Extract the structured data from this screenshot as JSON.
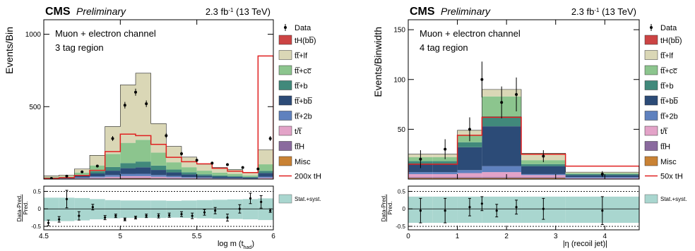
{
  "colors": {
    "tH": "#cc4444",
    "ttlf": "#dad7b6",
    "ttcc": "#8cc58e",
    "ttb": "#41897b",
    "ttbb": "#2c4b77",
    "tt2b": "#5f81be",
    "tt": "#e3a3c8",
    "ttH": "#8a6a9e",
    "Misc": "#c98234",
    "signal": "#e02020",
    "syst": "#a9d6cf"
  },
  "chart_data": [
    {
      "type": "bar",
      "stacked": true,
      "experiment": "CMS",
      "status": "Preliminary",
      "luminosity": "2.3 fb",
      "lumi_sup": "-1",
      "energy": " (13 TeV)",
      "annotation_1": "Muon + electron channel",
      "annotation_2": "3 tag region",
      "ylabel": "Events/Bin",
      "xlabel": "log m (t",
      "xlabel_sub": "had",
      "xlabel_end": ")",
      "xlim": [
        4.5,
        6.0
      ],
      "ylim": [
        0,
        1100
      ],
      "xticks": [
        "4.5",
        "5",
        "5.5",
        "6"
      ],
      "yticks": [
        "500",
        "1000"
      ],
      "bin_edges": [
        4.5,
        4.6,
        4.7,
        4.8,
        4.9,
        5.0,
        5.1,
        5.2,
        5.3,
        5.4,
        5.5,
        5.6,
        5.7,
        5.8,
        5.9,
        6.0
      ],
      "series": [
        {
          "name": "tH(bb̅)",
          "key": "tH",
          "values": [
            0,
            0,
            0,
            0,
            0,
            0,
            0,
            0,
            0,
            0,
            0,
            0,
            0,
            0,
            0
          ]
        },
        {
          "name": "tt̅+lf",
          "key": "ttlf",
          "values": [
            8,
            10,
            25,
            70,
            190,
            400,
            460,
            200,
            110,
            70,
            45,
            35,
            30,
            20,
            100
          ]
        },
        {
          "name": "tt̅+cc̅",
          "key": "ttcc",
          "values": [
            5,
            6,
            15,
            40,
            90,
            140,
            150,
            90,
            50,
            35,
            25,
            20,
            15,
            10,
            45
          ]
        },
        {
          "name": "tt̅+b",
          "key": "ttb",
          "values": [
            2,
            3,
            8,
            15,
            25,
            35,
            40,
            30,
            20,
            15,
            10,
            8,
            6,
            4,
            15
          ]
        },
        {
          "name": "tt̅+bb̅",
          "key": "ttbb",
          "values": [
            3,
            4,
            10,
            20,
            30,
            40,
            45,
            35,
            25,
            18,
            12,
            10,
            8,
            6,
            25
          ]
        },
        {
          "name": "tt̅+2b",
          "key": "tt2b",
          "values": [
            1,
            2,
            5,
            8,
            12,
            15,
            16,
            12,
            9,
            6,
            4,
            3,
            3,
            2,
            8
          ]
        },
        {
          "name": "t/t̅",
          "key": "tt",
          "values": [
            1,
            1,
            3,
            5,
            8,
            10,
            10,
            8,
            6,
            4,
            3,
            2,
            2,
            1,
            5
          ]
        },
        {
          "name": "tt̅H",
          "key": "ttH",
          "values": [
            1,
            1,
            2,
            3,
            4,
            5,
            5,
            4,
            3,
            2,
            2,
            1,
            1,
            1,
            2
          ]
        },
        {
          "name": "Misc",
          "key": "Misc",
          "values": [
            1,
            1,
            2,
            3,
            4,
            5,
            5,
            4,
            3,
            2,
            2,
            1,
            1,
            1,
            2
          ]
        }
      ],
      "signal": {
        "name": "200x tH",
        "values": [
          5,
          10,
          25,
          60,
          190,
          310,
          300,
          240,
          150,
          120,
          105,
          75,
          55,
          45,
          850
        ]
      },
      "data": {
        "name": "Data",
        "x": [
          4.55,
          4.65,
          4.75,
          4.85,
          4.95,
          5.03,
          5.1,
          5.17,
          5.3,
          5.4,
          5.5,
          5.6,
          5.7,
          5.8,
          5.9,
          5.98
        ],
        "y": [
          5,
          20,
          50,
          90,
          280,
          510,
          600,
          520,
          300,
          175,
          130,
          110,
          100,
          80,
          70,
          280
        ]
      },
      "ratio": {
        "ylabel_num": "Data-Pred.",
        "ylabel_den": "Pred.",
        "ylim": [
          -0.6,
          0.65
        ],
        "yticks": [
          "-0.5",
          "0",
          "0.5"
        ],
        "syst_label": "Stat.+syst.",
        "band_upper": [
          0.32,
          0.32,
          0.31,
          0.28,
          0.25,
          0.24,
          0.24,
          0.24,
          0.23,
          0.24,
          0.25,
          0.26,
          0.27,
          0.28,
          0.3
        ],
        "band_lower": [
          -0.35,
          -0.35,
          -0.33,
          -0.3,
          -0.27,
          -0.26,
          -0.26,
          -0.26,
          -0.25,
          -0.26,
          -0.27,
          -0.28,
          -0.29,
          -0.3,
          -0.32
        ],
        "x": [
          4.53,
          4.6,
          4.65,
          4.73,
          4.82,
          4.9,
          4.97,
          5.03,
          5.1,
          5.17,
          5.25,
          5.32,
          5.4,
          5.47,
          5.55,
          5.62,
          5.7,
          5.78,
          5.85,
          5.92,
          5.98
        ],
        "y": [
          -0.4,
          -0.3,
          0.28,
          -0.2,
          0.05,
          -0.25,
          -0.2,
          -0.3,
          -0.25,
          -0.2,
          -0.2,
          -0.18,
          -0.15,
          -0.2,
          -0.1,
          -0.05,
          -0.25,
          0.0,
          0.3,
          0.2,
          -0.05
        ],
        "err": [
          0.08,
          0.08,
          0.25,
          0.12,
          0.08,
          0.06,
          0.05,
          0.04,
          0.04,
          0.05,
          0.06,
          0.06,
          0.07,
          0.08,
          0.08,
          0.09,
          0.1,
          0.12,
          0.15,
          0.18,
          0.05
        ]
      }
    },
    {
      "type": "bar",
      "stacked": true,
      "experiment": "CMS",
      "status": "Preliminary",
      "luminosity": "2.3 fb",
      "lumi_sup": "-1",
      "energy": " (13 TeV)",
      "annotation_1": "Muon + electron channel",
      "annotation_2": "4 tag region",
      "ylabel": "Events/Binwidth",
      "xlabel": "|η (recoil jet)|",
      "xlim": [
        0,
        4.7
      ],
      "ylim": [
        0,
        160
      ],
      "xticks": [
        "0",
        "1",
        "2",
        "3",
        "4"
      ],
      "yticks": [
        "50",
        "100",
        "150"
      ],
      "bin_edges": [
        0,
        0.5,
        1.0,
        1.5,
        2.3,
        3.2,
        4.7
      ],
      "series": [
        {
          "name": "tH(bb̅)",
          "key": "tH",
          "values": [
            0,
            0,
            0,
            0,
            0,
            0
          ]
        },
        {
          "name": "tt̅+lf",
          "key": "ttlf",
          "values": [
            3,
            3,
            5,
            7,
            7,
            1
          ]
        },
        {
          "name": "tt̅+cc̅",
          "key": "ttcc",
          "values": [
            4,
            4,
            7,
            20,
            4,
            1
          ]
        },
        {
          "name": "tt̅+b",
          "key": "ttb",
          "values": [
            3,
            3,
            5,
            10,
            2,
            1
          ]
        },
        {
          "name": "tt̅+bb̅",
          "key": "ttbb",
          "values": [
            8,
            8,
            23,
            40,
            8,
            2
          ]
        },
        {
          "name": "tt̅+2b",
          "key": "tt2b",
          "values": [
            2,
            2,
            3,
            6,
            1,
            1
          ]
        },
        {
          "name": "t/t̅",
          "key": "tt",
          "values": [
            3,
            3,
            4,
            5,
            2,
            1
          ]
        },
        {
          "name": "tt̅H",
          "key": "ttH",
          "values": [
            1,
            1,
            1,
            1,
            1,
            0
          ]
        },
        {
          "name": "Misc",
          "key": "Misc",
          "values": [
            1,
            1,
            1,
            1,
            1,
            0
          ]
        }
      ],
      "signal": {
        "name": "50x tH",
        "values": [
          15,
          15,
          44,
          62,
          25,
          13
        ]
      },
      "data": {
        "name": "Data",
        "x": [
          0.25,
          0.75,
          1.25,
          1.5,
          1.9,
          2.2,
          2.75,
          3.95
        ],
        "y": [
          20,
          30,
          50,
          100,
          77,
          85,
          23,
          5
        ],
        "err": [
          9,
          10,
          12,
          18,
          16,
          17,
          6,
          3
        ]
      },
      "ratio": {
        "ylabel_num": "Data-Pred.",
        "ylabel_den": "Pred.",
        "ylim": [
          -0.6,
          0.65
        ],
        "yticks": [
          "-0.5",
          "0",
          "0.5"
        ],
        "syst_label": "Stat.+syst.",
        "band_upper": [
          0.35,
          0.35,
          0.35,
          0.35,
          0.35,
          0.35
        ],
        "band_lower": [
          -0.4,
          -0.4,
          -0.4,
          -0.4,
          -0.4,
          -0.4
        ],
        "x": [
          0.25,
          0.75,
          1.25,
          1.5,
          1.8,
          2.2,
          2.75,
          3.95
        ],
        "y": [
          -0.05,
          -0.05,
          0.05,
          0.15,
          -0.05,
          0.05,
          0.0,
          -0.05
        ],
        "err": [
          0.35,
          0.35,
          0.25,
          0.2,
          0.18,
          0.2,
          0.3,
          0.4
        ]
      }
    }
  ]
}
